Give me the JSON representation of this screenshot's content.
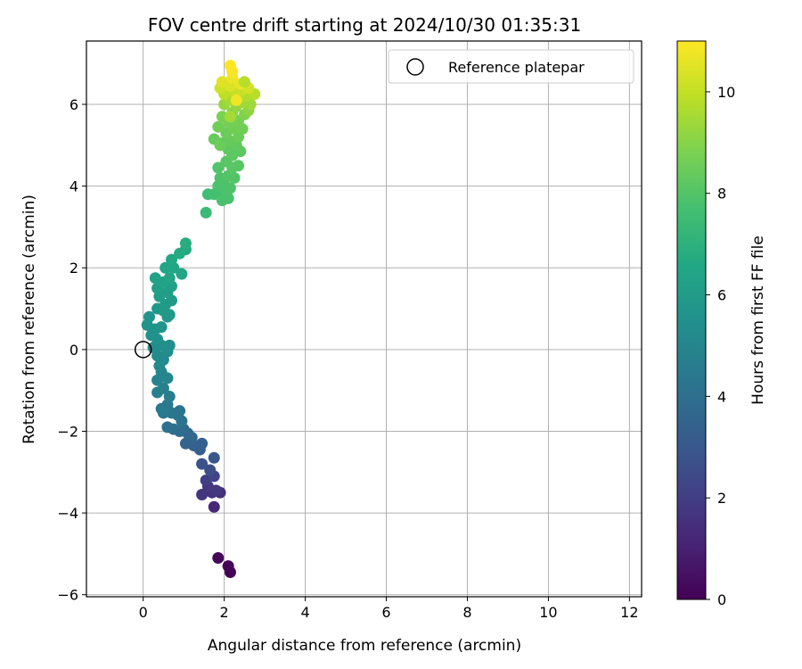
{
  "chart_data": {
    "type": "scatter",
    "title": "FOV centre drift starting at 2024/10/30 01:35:31",
    "xlabel": "Angular distance from reference (arcmin)",
    "ylabel": "Rotation from reference (arcmin)",
    "xlim": [
      -1.4,
      12.3
    ],
    "ylim": [
      -6.05,
      7.55
    ],
    "xticks": [
      "0",
      "2",
      "4",
      "6",
      "8",
      "10",
      "12"
    ],
    "yticks": [
      "−6",
      "−4",
      "−2",
      "0",
      "2",
      "4",
      "6"
    ],
    "grid": true,
    "legend": {
      "location": "upper right",
      "entries": [
        "Reference platepar"
      ]
    },
    "reference_point": {
      "x": 0,
      "y": 0,
      "style": "open circle"
    },
    "colorbar": {
      "label": "Hours from first FF file",
      "range": [
        0,
        11
      ],
      "ticks": [
        "0",
        "2",
        "4",
        "6",
        "8",
        "10"
      ],
      "colormap": "viridis"
    },
    "series": [
      {
        "points": [
          {
            "x": 2.15,
            "y": -5.45,
            "h": 0.0
          },
          {
            "x": 2.1,
            "y": -5.3,
            "h": 0.1
          },
          {
            "x": 1.85,
            "y": -5.1,
            "h": 0.2
          },
          {
            "x": 1.75,
            "y": -3.85,
            "h": 1.2
          },
          {
            "x": 1.9,
            "y": -3.5,
            "h": 1.5
          },
          {
            "x": 1.7,
            "y": -3.5,
            "h": 1.6
          },
          {
            "x": 1.45,
            "y": -3.55,
            "h": 1.7
          },
          {
            "x": 1.6,
            "y": -3.35,
            "h": 1.8
          },
          {
            "x": 1.55,
            "y": -3.2,
            "h": 2.0
          },
          {
            "x": 1.8,
            "y": -3.45,
            "h": 1.8
          },
          {
            "x": 1.75,
            "y": -3.1,
            "h": 2.2
          },
          {
            "x": 1.65,
            "y": -2.95,
            "h": 2.6
          },
          {
            "x": 1.45,
            "y": -2.8,
            "h": 2.8
          },
          {
            "x": 1.75,
            "y": -2.65,
            "h": 3.0
          },
          {
            "x": 1.4,
            "y": -2.45,
            "h": 3.2
          },
          {
            "x": 1.45,
            "y": -2.3,
            "h": 3.3
          },
          {
            "x": 1.25,
            "y": -2.35,
            "h": 3.4
          },
          {
            "x": 1.05,
            "y": -2.3,
            "h": 3.5
          },
          {
            "x": 1.2,
            "y": -2.15,
            "h": 3.6
          },
          {
            "x": 1.1,
            "y": -2.05,
            "h": 3.7
          },
          {
            "x": 1.0,
            "y": -1.95,
            "h": 3.8
          },
          {
            "x": 0.9,
            "y": -2.0,
            "h": 3.9
          },
          {
            "x": 0.75,
            "y": -1.95,
            "h": 4.0
          },
          {
            "x": 0.6,
            "y": -1.9,
            "h": 4.1
          },
          {
            "x": 0.95,
            "y": -1.75,
            "h": 4.2
          },
          {
            "x": 0.85,
            "y": -1.6,
            "h": 4.3
          },
          {
            "x": 0.7,
            "y": -1.55,
            "h": 4.4
          },
          {
            "x": 0.5,
            "y": -1.55,
            "h": 4.4
          },
          {
            "x": 0.6,
            "y": -1.35,
            "h": 4.5
          },
          {
            "x": 0.45,
            "y": -1.45,
            "h": 4.5
          },
          {
            "x": 0.9,
            "y": -1.5,
            "h": 4.3
          },
          {
            "x": 0.65,
            "y": -1.15,
            "h": 4.6
          },
          {
            "x": 0.35,
            "y": -1.05,
            "h": 4.7
          },
          {
            "x": 0.5,
            "y": -0.95,
            "h": 4.8
          },
          {
            "x": 0.35,
            "y": -0.75,
            "h": 4.9
          },
          {
            "x": 0.6,
            "y": -0.7,
            "h": 5.0
          },
          {
            "x": 0.45,
            "y": -0.55,
            "h": 5.0
          },
          {
            "x": 0.4,
            "y": -0.4,
            "h": 5.1
          },
          {
            "x": 0.5,
            "y": -0.25,
            "h": 5.2
          },
          {
            "x": 0.35,
            "y": -0.15,
            "h": 5.2
          },
          {
            "x": 0.6,
            "y": -0.05,
            "h": 5.3
          },
          {
            "x": 0.25,
            "y": 0.05,
            "h": 5.3
          },
          {
            "x": 0.45,
            "y": 0.1,
            "h": 5.4
          },
          {
            "x": 0.65,
            "y": 0.1,
            "h": 5.4
          },
          {
            "x": 0.35,
            "y": 0.25,
            "h": 5.5
          },
          {
            "x": 0.2,
            "y": 0.35,
            "h": 5.5
          },
          {
            "x": 0.3,
            "y": 0.5,
            "h": 5.6
          },
          {
            "x": 0.1,
            "y": 0.6,
            "h": 5.6
          },
          {
            "x": 0.45,
            "y": 0.55,
            "h": 5.7
          },
          {
            "x": 0.15,
            "y": 0.8,
            "h": 5.7
          },
          {
            "x": 0.6,
            "y": 0.8,
            "h": 5.8
          },
          {
            "x": 0.35,
            "y": 1.0,
            "h": 5.9
          },
          {
            "x": 0.5,
            "y": 0.95,
            "h": 5.9
          },
          {
            "x": 0.65,
            "y": 0.85,
            "h": 5.9
          },
          {
            "x": 0.55,
            "y": 1.1,
            "h": 6.0
          },
          {
            "x": 0.7,
            "y": 1.2,
            "h": 6.0
          },
          {
            "x": 0.4,
            "y": 1.3,
            "h": 6.1
          },
          {
            "x": 0.6,
            "y": 1.4,
            "h": 6.1
          },
          {
            "x": 0.35,
            "y": 1.5,
            "h": 6.2
          },
          {
            "x": 0.7,
            "y": 1.55,
            "h": 6.2
          },
          {
            "x": 0.5,
            "y": 1.65,
            "h": 6.3
          },
          {
            "x": 0.3,
            "y": 1.75,
            "h": 6.3
          },
          {
            "x": 0.65,
            "y": 1.75,
            "h": 6.4
          },
          {
            "x": 0.55,
            "y": 2.0,
            "h": 6.4
          },
          {
            "x": 0.75,
            "y": 2.0,
            "h": 6.5
          },
          {
            "x": 0.95,
            "y": 1.85,
            "h": 6.5
          },
          {
            "x": 0.7,
            "y": 2.2,
            "h": 6.6
          },
          {
            "x": 0.9,
            "y": 2.35,
            "h": 6.7
          },
          {
            "x": 1.05,
            "y": 2.45,
            "h": 6.7
          },
          {
            "x": 1.05,
            "y": 2.6,
            "h": 6.8
          },
          {
            "x": 1.55,
            "y": 3.35,
            "h": 7.4
          },
          {
            "x": 1.6,
            "y": 3.8,
            "h": 7.6
          },
          {
            "x": 1.75,
            "y": 3.8,
            "h": 7.7
          },
          {
            "x": 1.9,
            "y": 3.85,
            "h": 7.7
          },
          {
            "x": 2.05,
            "y": 3.8,
            "h": 7.8
          },
          {
            "x": 2.1,
            "y": 3.7,
            "h": 7.8
          },
          {
            "x": 1.95,
            "y": 3.65,
            "h": 7.8
          },
          {
            "x": 1.85,
            "y": 4.0,
            "h": 7.8
          },
          {
            "x": 2.0,
            "y": 4.05,
            "h": 7.9
          },
          {
            "x": 2.15,
            "y": 3.95,
            "h": 7.9
          },
          {
            "x": 1.9,
            "y": 4.2,
            "h": 7.9
          },
          {
            "x": 2.1,
            "y": 4.25,
            "h": 8.0
          },
          {
            "x": 2.25,
            "y": 4.2,
            "h": 8.0
          },
          {
            "x": 1.85,
            "y": 4.45,
            "h": 8.0
          },
          {
            "x": 2.2,
            "y": 4.45,
            "h": 8.1
          },
          {
            "x": 2.35,
            "y": 4.5,
            "h": 8.1
          },
          {
            "x": 2.05,
            "y": 4.6,
            "h": 8.1
          },
          {
            "x": 2.2,
            "y": 4.75,
            "h": 8.2
          },
          {
            "x": 2.4,
            "y": 4.85,
            "h": 8.2
          },
          {
            "x": 2.1,
            "y": 4.9,
            "h": 8.2
          },
          {
            "x": 2.3,
            "y": 5.0,
            "h": 8.3
          },
          {
            "x": 1.95,
            "y": 5.05,
            "h": 8.3
          },
          {
            "x": 2.15,
            "y": 5.1,
            "h": 8.4
          },
          {
            "x": 1.75,
            "y": 5.15,
            "h": 8.4
          },
          {
            "x": 2.35,
            "y": 5.2,
            "h": 8.5
          },
          {
            "x": 2.05,
            "y": 5.3,
            "h": 8.5
          },
          {
            "x": 1.9,
            "y": 5.0,
            "h": 8.5
          },
          {
            "x": 2.25,
            "y": 5.4,
            "h": 8.6
          },
          {
            "x": 2.45,
            "y": 5.4,
            "h": 8.6
          },
          {
            "x": 1.85,
            "y": 5.45,
            "h": 8.6
          },
          {
            "x": 2.1,
            "y": 5.55,
            "h": 8.7
          },
          {
            "x": 2.35,
            "y": 5.6,
            "h": 8.7
          },
          {
            "x": 1.95,
            "y": 5.7,
            "h": 8.8
          },
          {
            "x": 2.5,
            "y": 5.75,
            "h": 8.9
          },
          {
            "x": 2.2,
            "y": 5.8,
            "h": 9.0
          },
          {
            "x": 2.6,
            "y": 5.85,
            "h": 9.1
          },
          {
            "x": 2.3,
            "y": 5.95,
            "h": 9.2
          },
          {
            "x": 2.0,
            "y": 6.0,
            "h": 9.3
          },
          {
            "x": 2.45,
            "y": 6.05,
            "h": 9.4
          },
          {
            "x": 2.65,
            "y": 6.0,
            "h": 9.4
          },
          {
            "x": 2.15,
            "y": 6.1,
            "h": 9.5
          },
          {
            "x": 2.35,
            "y": 6.15,
            "h": 9.6
          },
          {
            "x": 2.55,
            "y": 6.2,
            "h": 9.7
          },
          {
            "x": 2.75,
            "y": 6.25,
            "h": 9.8
          },
          {
            "x": 2.0,
            "y": 6.25,
            "h": 9.9
          },
          {
            "x": 2.25,
            "y": 6.3,
            "h": 10.0
          },
          {
            "x": 2.45,
            "y": 6.35,
            "h": 10.1
          },
          {
            "x": 1.9,
            "y": 6.4,
            "h": 10.2
          },
          {
            "x": 2.6,
            "y": 6.4,
            "h": 10.3
          },
          {
            "x": 2.15,
            "y": 6.45,
            "h": 10.4
          },
          {
            "x": 1.95,
            "y": 6.55,
            "h": 10.5
          },
          {
            "x": 2.4,
            "y": 6.5,
            "h": 10.6
          },
          {
            "x": 2.2,
            "y": 6.65,
            "h": 10.7
          },
          {
            "x": 2.2,
            "y": 6.8,
            "h": 10.9
          },
          {
            "x": 2.15,
            "y": 6.95,
            "h": 11.0
          },
          {
            "x": 2.15,
            "y": 5.7,
            "h": 9.5
          },
          {
            "x": 2.5,
            "y": 6.55,
            "h": 9.8
          },
          {
            "x": 2.3,
            "y": 6.1,
            "h": 10.8
          }
        ]
      }
    ]
  }
}
